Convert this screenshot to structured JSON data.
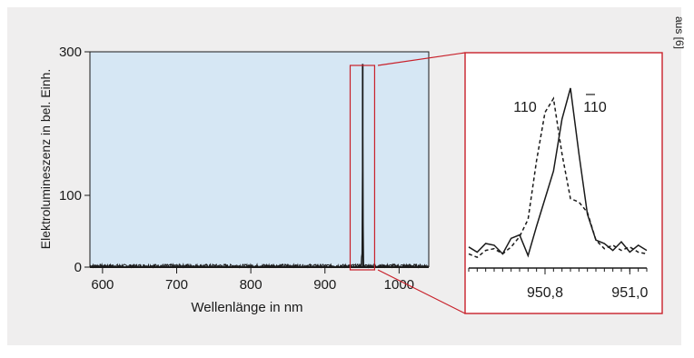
{
  "source_note": "aus [6]",
  "colors": {
    "panel_background": "#efeeee",
    "plot_background": "#d6e7f4",
    "line": "#1a1a1a",
    "highlight": "#c8202a"
  },
  "chart_data": [
    {
      "type": "line",
      "title": "",
      "xlabel": "Wellenlänge in nm",
      "ylabel": "Elektrolumineszenz in bel. Einh.",
      "xlim": [
        583,
        1040
      ],
      "ylim": [
        0,
        300
      ],
      "x_ticks": [
        600,
        700,
        800,
        900,
        1000
      ],
      "x_tick_labels": [
        "600",
        "700",
        "800",
        "900",
        "1000"
      ],
      "y_ticks": [
        0,
        100,
        300
      ],
      "y_tick_labels": [
        "0",
        "100",
        "300"
      ],
      "grid": false,
      "series": [
        {
          "name": "",
          "baseline": 2,
          "noise": 2,
          "x": [
            583,
            945,
            948,
            950,
            950.6,
            950.9,
            951.2,
            952,
            955,
            1040
          ],
          "values": [
            2,
            2,
            4,
            20,
            150,
            283,
            150,
            8,
            2,
            2
          ]
        }
      ],
      "highlight_region": [
        934,
        967
      ]
    },
    {
      "type": "line",
      "title": "",
      "xlabel": "",
      "ylabel": "",
      "xlim": [
        950.62,
        951.04
      ],
      "ylim": [
        0,
        1
      ],
      "x_ticks": [
        950.8,
        951.0
      ],
      "x_tick_labels": [
        "950,8",
        "951,0"
      ],
      "minor_x_step": 0.02,
      "grid": false,
      "series": [
        {
          "name": "110",
          "style": "dashed",
          "label_text": "110",
          "x": [
            950.62,
            950.64,
            950.66,
            950.68,
            950.7,
            950.72,
            950.74,
            950.76,
            950.78,
            950.8,
            950.82,
            950.84,
            950.86,
            950.88,
            950.9,
            950.92,
            950.94,
            950.96,
            950.98,
            951.0,
            951.02,
            951.04
          ],
          "values": [
            0.04,
            0.02,
            0.06,
            0.07,
            0.04,
            0.08,
            0.14,
            0.24,
            0.58,
            0.86,
            0.94,
            0.62,
            0.36,
            0.34,
            0.28,
            0.12,
            0.07,
            0.09,
            0.06,
            0.08,
            0.05,
            0.04
          ]
        },
        {
          "name": "1̄1̄0",
          "style": "solid",
          "label_text": "110",
          "label_overbar": "1̄1̄",
          "x": [
            950.62,
            950.64,
            950.66,
            950.68,
            950.7,
            950.72,
            950.74,
            950.76,
            950.78,
            950.8,
            950.82,
            950.84,
            950.86,
            950.88,
            950.9,
            950.92,
            950.94,
            950.96,
            950.98,
            951.0,
            951.02,
            951.04
          ],
          "values": [
            0.08,
            0.05,
            0.1,
            0.09,
            0.04,
            0.13,
            0.15,
            0.03,
            0.2,
            0.36,
            0.52,
            0.82,
            1.0,
            0.62,
            0.27,
            0.12,
            0.1,
            0.06,
            0.11,
            0.05,
            0.09,
            0.06
          ]
        }
      ]
    }
  ]
}
